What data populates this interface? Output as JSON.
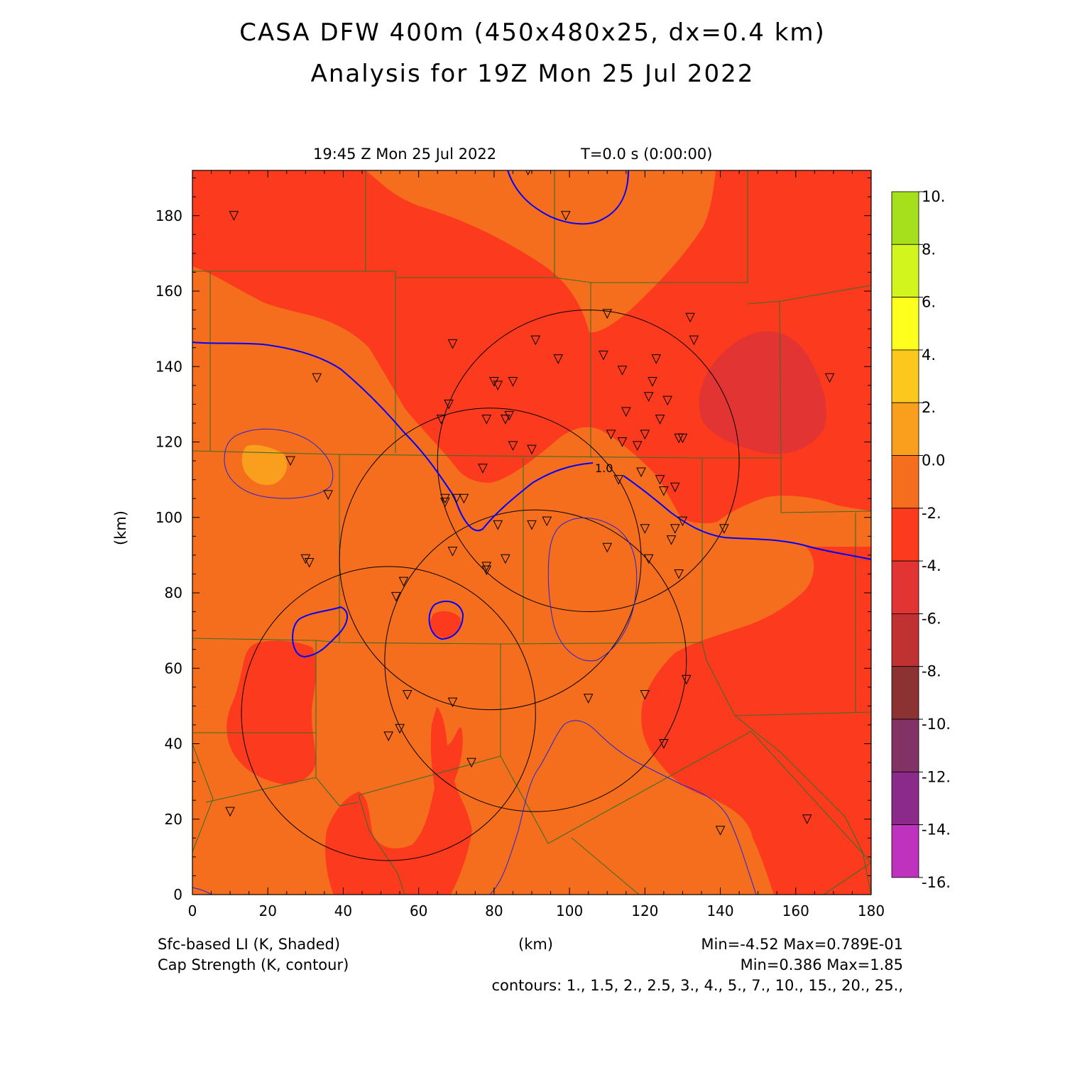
{
  "title_line1": "CASA DFW 400m (450x480x25, dx=0.4 km)",
  "title_line2": "Analysis for 19Z Mon 25 Jul 2022",
  "valid_time": "19:45 Z Mon 25 Jul 2022",
  "forecast_time": "T=0.0 s (0:00:00)",
  "x_unit": "(km)",
  "y_unit": "(km)",
  "shaded_field": "Sfc-based LI (K, Shaded)",
  "contour_field": "Cap Strength (K, contour)",
  "shaded_range": "Min=-4.52 Max=0.789E-01",
  "contour_range": "Min=0.386 Max=1.85",
  "contour_levels": "contours: 1., 1.5, 2., 2.5, 3., 4., 5., 7., 10., 15., 20., 25.,",
  "contour_label": "1.0",
  "colors": {
    "li_0_to_m2": "#f46e1e",
    "li_m2_to_m4": "#fc3a1e",
    "li_m4_to_m6": "#e33434",
    "li_0_to_2": "#fa9e1e",
    "cap_contour": "#0000ff",
    "county_lines": "#3c6e28",
    "radar_rings": "#000000"
  },
  "colorbar": {
    "labels": [
      "10.",
      "8.",
      "6.",
      "4.",
      "2.",
      "0.0",
      "-2.",
      "-4.",
      "-6.",
      "-8.",
      "-10.",
      "-12.",
      "-14.",
      "-16."
    ],
    "colors": [
      "#a6e01c",
      "#d2f51e",
      "#ffff1e",
      "#fdc81e",
      "#fa9e1e",
      "#f46e1e",
      "#fc3a1e",
      "#e33434",
      "#c03232",
      "#8c3232",
      "#823264",
      "#8c2a8c",
      "#be32be",
      "#dc3ce6"
    ]
  },
  "chart_data": {
    "type": "heatmap",
    "x_ticks": [
      0,
      20,
      40,
      60,
      80,
      100,
      120,
      140,
      160,
      180
    ],
    "y_ticks": [
      0,
      20,
      40,
      60,
      80,
      100,
      120,
      140,
      160,
      180
    ],
    "xlim": [
      0,
      180
    ],
    "ylim": [
      0,
      192
    ],
    "radar_sites_km": [
      {
        "x": 52,
        "y": 48,
        "r": 39
      },
      {
        "x": 79,
        "y": 89,
        "r": 40
      },
      {
        "x": 91,
        "y": 62,
        "r": 40
      },
      {
        "x": 105,
        "y": 115,
        "r": 40
      }
    ],
    "stations_km": [
      [
        11,
        180
      ],
      [
        89,
        192
      ],
      [
        99,
        180
      ],
      [
        33,
        137
      ],
      [
        26,
        115
      ],
      [
        36,
        106
      ],
      [
        30,
        89
      ],
      [
        31,
        88
      ],
      [
        69,
        146
      ],
      [
        80,
        136
      ],
      [
        81,
        135
      ],
      [
        85,
        136
      ],
      [
        91,
        147
      ],
      [
        97,
        142
      ],
      [
        110,
        154
      ],
      [
        109,
        143
      ],
      [
        114,
        139
      ],
      [
        122,
        136
      ],
      [
        123,
        142
      ],
      [
        121,
        132
      ],
      [
        126,
        131
      ],
      [
        124,
        126
      ],
      [
        120,
        122
      ],
      [
        118,
        119
      ],
      [
        114,
        120
      ],
      [
        111,
        122
      ],
      [
        115,
        128
      ],
      [
        113,
        110
      ],
      [
        119,
        112
      ],
      [
        124,
        110
      ],
      [
        125,
        107
      ],
      [
        128,
        108
      ],
      [
        129,
        121
      ],
      [
        130,
        121
      ],
      [
        132,
        153
      ],
      [
        133,
        147
      ],
      [
        68,
        130
      ],
      [
        66,
        126
      ],
      [
        78,
        126
      ],
      [
        83,
        126
      ],
      [
        84,
        127
      ],
      [
        85,
        119
      ],
      [
        90,
        118
      ],
      [
        77,
        113
      ],
      [
        67,
        104
      ],
      [
        67,
        105
      ],
      [
        70,
        105
      ],
      [
        72,
        105
      ],
      [
        81,
        98
      ],
      [
        90,
        98
      ],
      [
        94,
        99
      ],
      [
        69,
        91
      ],
      [
        78,
        87
      ],
      [
        78,
        86
      ],
      [
        83,
        89
      ],
      [
        110,
        92
      ],
      [
        120,
        97
      ],
      [
        121,
        89
      ],
      [
        127,
        94
      ],
      [
        128,
        97
      ],
      [
        130,
        99
      ],
      [
        129,
        85
      ],
      [
        141,
        97
      ],
      [
        56,
        83
      ],
      [
        54,
        79
      ],
      [
        57,
        53
      ],
      [
        69,
        51
      ],
      [
        55,
        44
      ],
      [
        52,
        42
      ],
      [
        74,
        35
      ],
      [
        105,
        52
      ],
      [
        120,
        53
      ],
      [
        131,
        57
      ],
      [
        125,
        40
      ],
      [
        10,
        22
      ],
      [
        140,
        17
      ],
      [
        163,
        20
      ],
      [
        169,
        137
      ]
    ]
  }
}
